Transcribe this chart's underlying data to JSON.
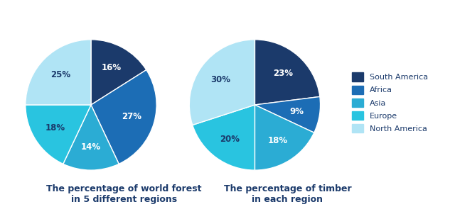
{
  "chart1": {
    "title": "The percentage of world forest\nin 5 different regions",
    "values": [
      16,
      27,
      14,
      18,
      25
    ],
    "labels": [
      "16%",
      "27%",
      "14%",
      "18%",
      "25%"
    ],
    "startangle": 90
  },
  "chart2": {
    "title": "The percentage of timber\nin each region",
    "values": [
      23,
      9,
      18,
      20,
      30
    ],
    "labels": [
      "23%",
      "9%",
      "18%",
      "20%",
      "30%"
    ],
    "startangle": 90
  },
  "colors": [
    "#1b3a6b",
    "#1c6db5",
    "#2bacd4",
    "#29c4e0",
    "#b0e4f5"
  ],
  "legend_labels": [
    "South America",
    "Africa",
    "Asia",
    "Europe",
    "North America"
  ],
  "background_color": "#ffffff",
  "title_fontsize": 9,
  "label_fontsize": 8.5,
  "label_color_dark": "#1b3a6b",
  "label_color_light": "white"
}
